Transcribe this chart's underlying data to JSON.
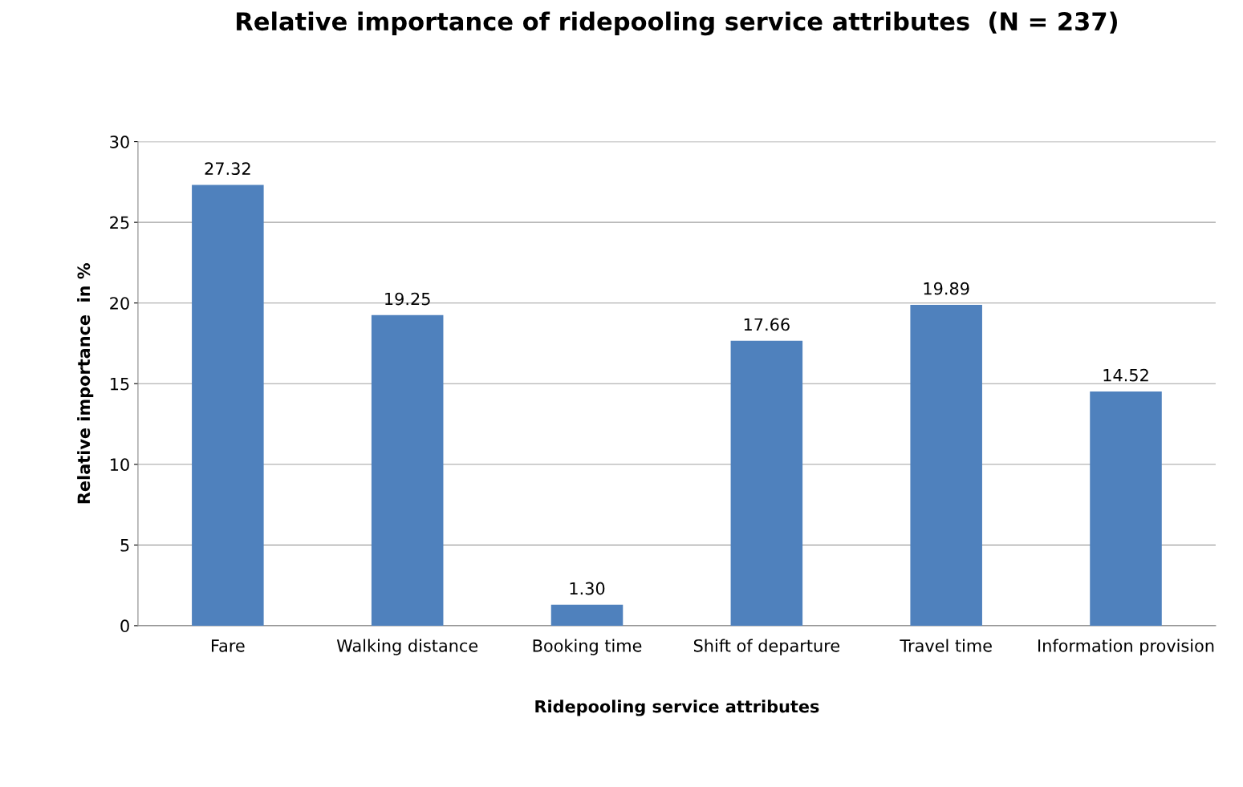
{
  "chart_data": {
    "type": "bar",
    "title": "Relative importance of ridepooling service attributes  (N = 237)",
    "xlabel": "Ridepooling service attributes",
    "ylabel": "Relative importance  in %",
    "categories": [
      "Fare",
      "Walking distance",
      "Booking time",
      "Shift of departure",
      "Travel time",
      "Information provision"
    ],
    "values": [
      27.32,
      19.25,
      1.3,
      17.66,
      19.89,
      14.52
    ],
    "value_labels": [
      "27.32",
      "19.25",
      "1.30",
      "17.66",
      "19.89",
      "14.52"
    ],
    "color": "#4f81bd",
    "ylim": [
      0,
      30
    ],
    "yticks": [
      0,
      5,
      10,
      15,
      20,
      25,
      30
    ],
    "grid": "y",
    "legend": false
  }
}
